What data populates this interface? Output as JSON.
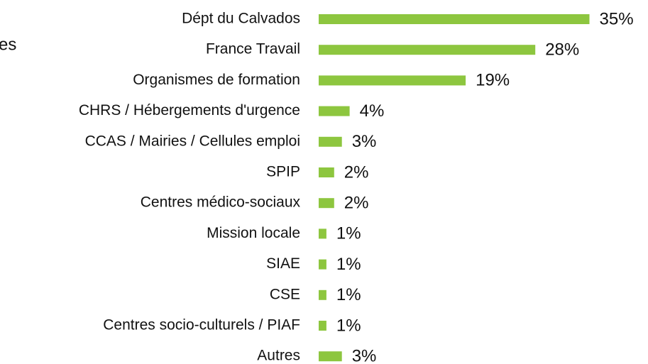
{
  "chart_data": {
    "type": "bar",
    "orientation": "horizontal",
    "annotation": "es",
    "categories": [
      "Dépt du Calvados",
      "France Travail",
      "Organismes de formation",
      "CHRS / Hébergements d'urgence",
      "CCAS / Mairies / Cellules emploi",
      "SPIP",
      "Centres médico-sociaux",
      "Mission locale",
      "SIAE",
      "CSE",
      "Centres socio-culturels / PIAF",
      "Autres"
    ],
    "values": [
      35,
      28,
      19,
      4,
      3,
      2,
      2,
      1,
      1,
      1,
      1,
      3
    ],
    "value_labels": [
      "35%",
      "28%",
      "19%",
      "4%",
      "3%",
      "2%",
      "2%",
      "1%",
      "1%",
      "1%",
      "1%",
      "3%"
    ],
    "color": "#8dc63f"
  }
}
